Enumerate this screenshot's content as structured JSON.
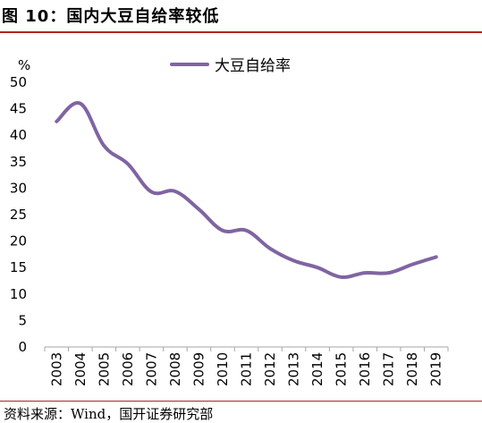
{
  "figure": {
    "title": "图 10：国内大豆自给率较低",
    "source": "资料来源：Wind，国开证券研究部"
  },
  "colors": {
    "series": "#8064a2",
    "rule": "#b22222",
    "axis": "#a6a6a6"
  },
  "chart_data": {
    "type": "line",
    "title": "",
    "xlabel": "",
    "ylabel": "%",
    "ylim": [
      0,
      50
    ],
    "yticks": [
      0,
      5,
      10,
      15,
      20,
      25,
      30,
      35,
      40,
      45,
      50
    ],
    "grid": false,
    "legend_position": "top",
    "categories": [
      "2003",
      "2004",
      "2005",
      "2006",
      "2007",
      "2008",
      "2009",
      "2010",
      "2011",
      "2012",
      "2013",
      "2014",
      "2015",
      "2016",
      "2017",
      "2018",
      "2019"
    ],
    "series": [
      {
        "name": "大豆自给率",
        "values": [
          42.6,
          46.0,
          38.0,
          34.6,
          29.3,
          29.4,
          26.0,
          22.0,
          22.0,
          18.6,
          16.3,
          15.0,
          13.2,
          14.0,
          14.0,
          15.6,
          17.0
        ]
      }
    ]
  }
}
